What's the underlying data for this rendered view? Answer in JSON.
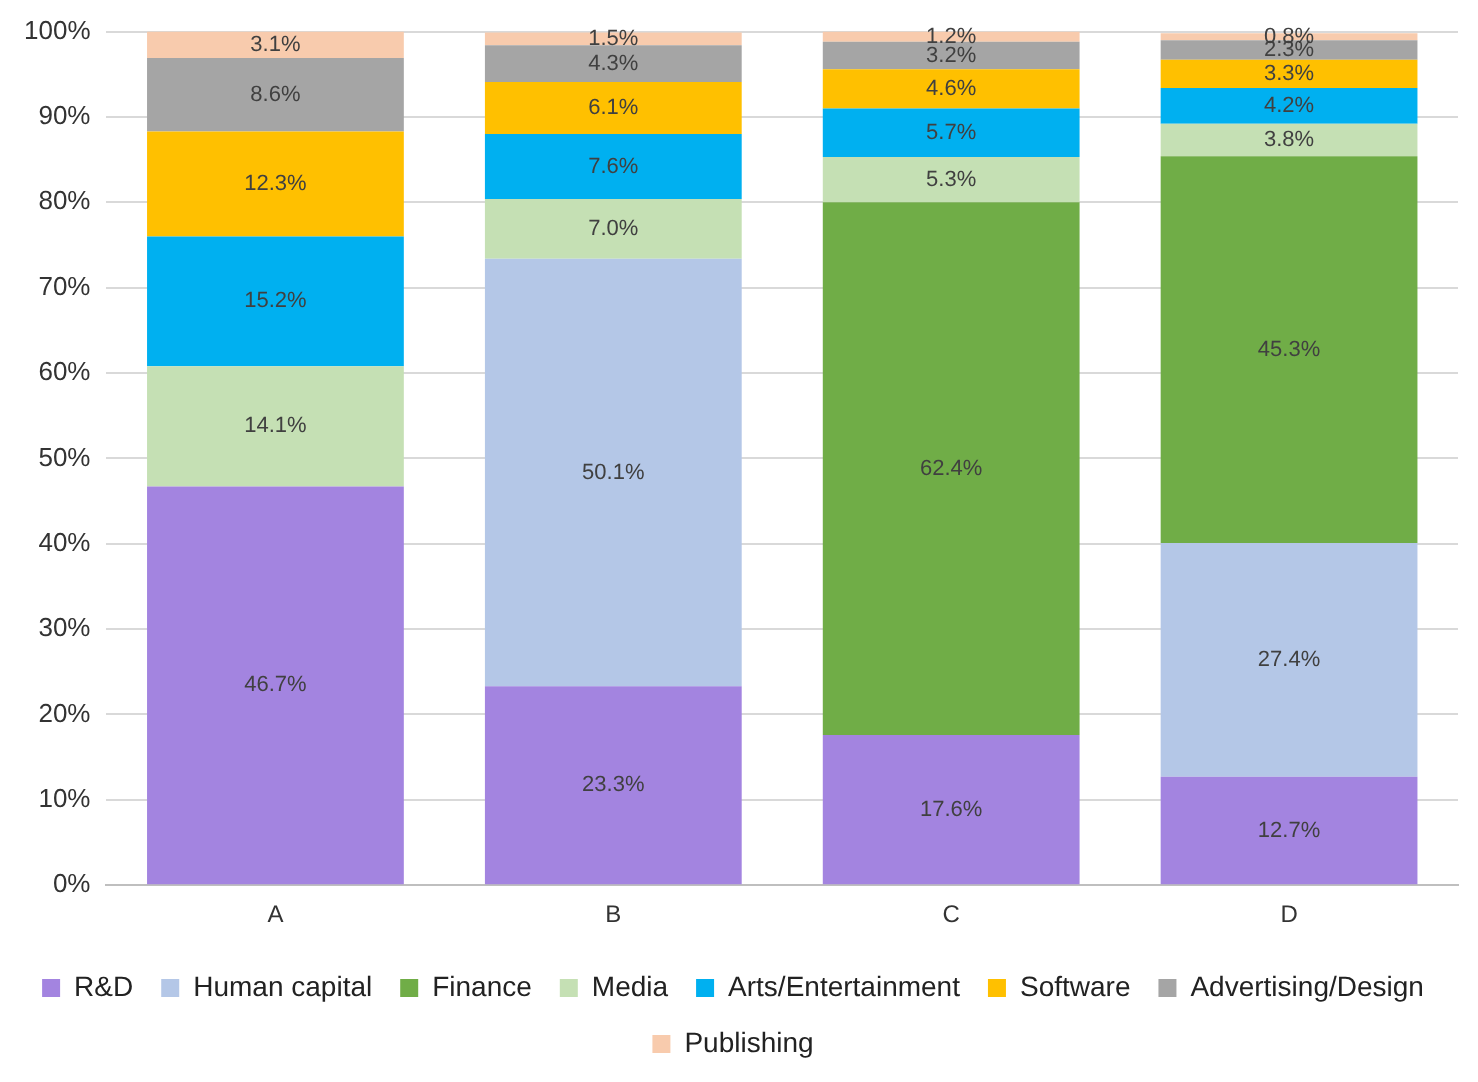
{
  "chart_data": {
    "type": "bar",
    "stacked": true,
    "categories": [
      "A",
      "B",
      "C",
      "D"
    ],
    "series": [
      {
        "name": "R&D",
        "color": "#a384e0",
        "values": [
          46.7,
          23.3,
          17.6,
          12.7
        ],
        "value_labels": [
          "46.7%",
          "23.3%",
          "17.6%",
          "12.7%"
        ]
      },
      {
        "name": "Human capital",
        "color": "#b4c7e7",
        "values": [
          null,
          50.1,
          null,
          27.4
        ],
        "value_labels": [
          null,
          "50.1%",
          null,
          "27.4%"
        ]
      },
      {
        "name": "Finance",
        "color": "#70ad47",
        "values": [
          null,
          null,
          62.4,
          45.3
        ],
        "value_labels": [
          null,
          null,
          "62.4%",
          "45.3%"
        ]
      },
      {
        "name": "Media",
        "color": "#c5e0b4",
        "values": [
          14.1,
          7.0,
          5.3,
          3.8
        ],
        "value_labels": [
          "14.1%",
          "7.0%",
          "5.3%",
          "3.8%"
        ]
      },
      {
        "name": "Arts/Entertainment",
        "color": "#00b0f0",
        "values": [
          15.2,
          7.6,
          5.7,
          4.2
        ],
        "value_labels": [
          "15.2%",
          "7.6%",
          "5.7%",
          "4.2%"
        ]
      },
      {
        "name": "Software",
        "color": "#ffc000",
        "values": [
          12.3,
          6.1,
          4.6,
          3.3
        ],
        "value_labels": [
          "12.3%",
          "6.1%",
          "4.6%",
          "3.3%"
        ]
      },
      {
        "name": "Advertising/Design",
        "color": "#a5a5a5",
        "values": [
          8.6,
          4.3,
          3.2,
          2.3
        ],
        "value_labels": [
          "8.6%",
          "4.3%",
          "3.2%",
          "2.3%"
        ]
      },
      {
        "name": "Publishing",
        "color": "#f8cbad",
        "values": [
          3.1,
          1.5,
          1.2,
          0.8
        ],
        "value_labels": [
          "3.1%",
          "1.5%",
          "1.2%",
          "0.8%"
        ]
      }
    ],
    "ylim": [
      0,
      100
    ],
    "yticks": [
      {
        "value": 0,
        "label": "0%"
      },
      {
        "value": 10,
        "label": "10%"
      },
      {
        "value": 20,
        "label": "20%"
      },
      {
        "value": 30,
        "label": "30%"
      },
      {
        "value": 40,
        "label": "40%"
      },
      {
        "value": 50,
        "label": "50%"
      },
      {
        "value": 60,
        "label": "60%"
      },
      {
        "value": 70,
        "label": "70%"
      },
      {
        "value": 80,
        "label": "80%"
      },
      {
        "value": 90,
        "label": "90%"
      },
      {
        "value": 100,
        "label": "100%"
      }
    ],
    "grid": "y",
    "legend": "bottom"
  }
}
